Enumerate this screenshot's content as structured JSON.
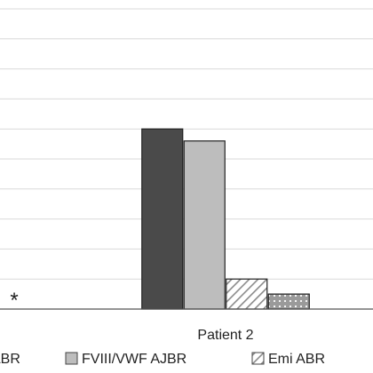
{
  "chart_data": {
    "type": "bar",
    "categories": [
      "",
      "Patient 2"
    ],
    "series": [
      {
        "name": "ABR",
        "values": [
          0,
          6
        ],
        "color": "#4a4a4a",
        "pattern": "solid"
      },
      {
        "name": "FVIII/VWF AJBR",
        "values": [
          0,
          5.6
        ],
        "color": "#bdbdbd",
        "pattern": "solid"
      },
      {
        "name": "Emi ABR",
        "values": [
          0,
          1
        ],
        "color": "#ffffff",
        "pattern": "diagonal-stripes"
      },
      {
        "name": "",
        "values": [
          0,
          0.5
        ],
        "color": "#9a9a9a",
        "pattern": "dots"
      }
    ],
    "ylim": [
      0,
      10
    ],
    "grid": true,
    "legend_position": "bottom",
    "annotations": [
      {
        "text": "*",
        "category": 0
      }
    ]
  }
}
